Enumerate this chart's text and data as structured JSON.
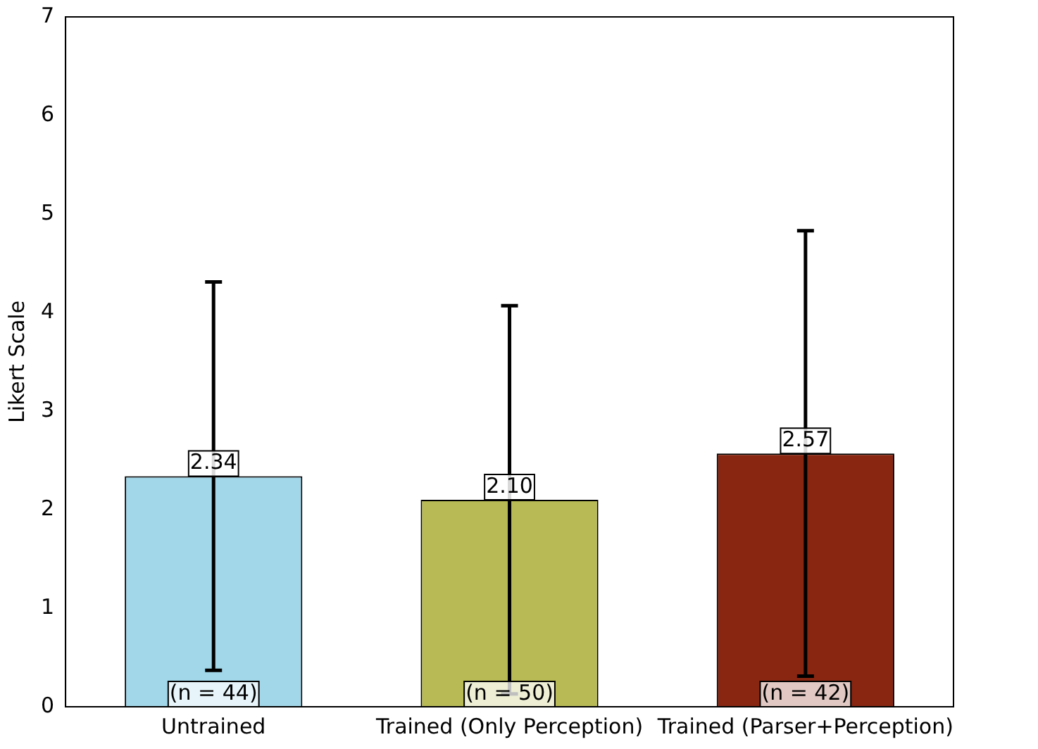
{
  "chart_data": {
    "type": "bar",
    "ylabel": "Likert Scale",
    "categories": [
      "Untrained",
      "Trained (Only Perception)",
      "Trained (Parser+Perception)"
    ],
    "values": [
      2.34,
      2.1,
      2.57
    ],
    "colors": [
      "#a1d7e9",
      "#b8bb55",
      "#882611"
    ],
    "errors": [
      1.97,
      1.97,
      2.26
    ],
    "ylim": [
      0,
      7
    ],
    "yticks": [
      0,
      1,
      2,
      3,
      4,
      5,
      6,
      7
    ],
    "grid": false,
    "legend": false,
    "value_labels": [
      "2.34",
      "2.10",
      "2.57"
    ],
    "annotations": [
      {
        "text": "(n = 44)",
        "x": "Untrained",
        "y": 0
      },
      {
        "text": "(n = 50)",
        "x": "Trained (Only Perception)",
        "y": 0
      },
      {
        "text": "(n = 42)",
        "x": "Trained (Parser+Perception)",
        "y": 0
      }
    ]
  }
}
